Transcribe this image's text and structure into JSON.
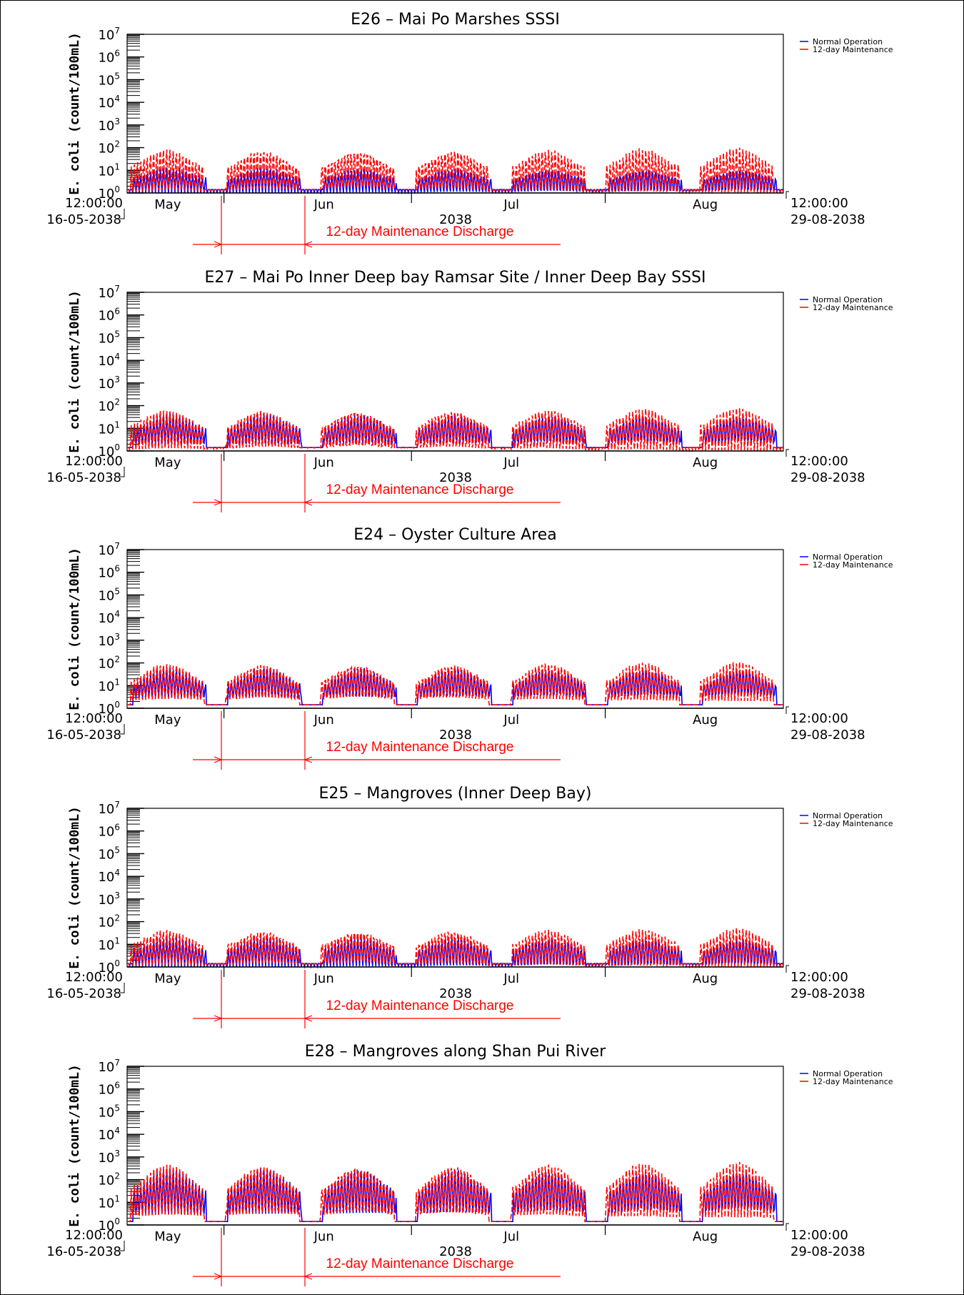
{
  "page": {
    "colors": {
      "normal": "#0000ff",
      "maintenance": "#ff0000",
      "axis": "#000000"
    }
  },
  "shared": {
    "ylabel": "E. coli (count/100mL)",
    "y_tick_labels": [
      "10^0",
      "10^1",
      "10^2",
      "10^3",
      "10^4",
      "10^5",
      "10^6",
      "10^7"
    ],
    "x_month_labels": [
      "May",
      "Jun",
      "Jul",
      "Aug"
    ],
    "x_year_label": "2038",
    "start_time": "12:00:00",
    "start_date": "16-05-2038",
    "end_time": "12:00:00",
    "end_date": "29-08-2038",
    "maintenance_label": "12-day Maintenance Discharge",
    "legend": [
      "Normal Operation",
      "12-day Maintenance"
    ]
  },
  "chart_data": [
    {
      "type": "line",
      "title": "E26 – Mai Po Marshes SSSI",
      "ylabel": "E. coli (count/100mL)",
      "yscale": "log",
      "ylim": [
        1,
        10000000
      ],
      "xlim": [
        "2038-05-16 12:00",
        "2038-08-29 12:00"
      ],
      "maintenance_period": [
        "2038-05-31",
        "2038-06-12"
      ],
      "series": [
        {
          "name": "Normal Operation",
          "color": "#0000ff",
          "typical_peak": 12,
          "typical_trough": 1
        },
        {
          "name": "12-day Maintenance",
          "color": "#ff0000",
          "typical_peak": 100,
          "typical_trough": 1
        }
      ]
    },
    {
      "type": "line",
      "title": "E27 – Mai Po Inner Deep bay Ramsar Site / Inner Deep Bay SSSI",
      "ylabel": "E. coli (count/100mL)",
      "yscale": "log",
      "ylim": [
        1,
        10000000
      ],
      "xlim": [
        "2038-05-16 12:00",
        "2038-08-29 12:00"
      ],
      "maintenance_period": [
        "2038-05-31",
        "2038-06-12"
      ],
      "series": [
        {
          "name": "Normal Operation",
          "color": "#0000ff",
          "typical_peak": 40,
          "typical_trough": 2
        },
        {
          "name": "12-day Maintenance",
          "color": "#ff0000",
          "typical_peak": 80,
          "typical_trough": 1
        }
      ]
    },
    {
      "type": "line",
      "title": "E24 – Oyster Culture Area",
      "ylabel": "E. coli (count/100mL)",
      "yscale": "log",
      "ylim": [
        1,
        10000000
      ],
      "xlim": [
        "2038-05-16 12:00",
        "2038-08-29 12:00"
      ],
      "maintenance_period": [
        "2038-05-31",
        "2038-06-12"
      ],
      "series": [
        {
          "name": "Normal Operation",
          "color": "#0000ff",
          "typical_peak": 60,
          "typical_trough": 3
        },
        {
          "name": "12-day Maintenance",
          "color": "#ff0000",
          "typical_peak": 110,
          "typical_trough": 2
        }
      ]
    },
    {
      "type": "line",
      "title": "E25 – Mangroves (Inner Deep Bay)",
      "ylabel": "E. coli (count/100mL)",
      "yscale": "log",
      "ylim": [
        1,
        10000000
      ],
      "xlim": [
        "2038-05-16 12:00",
        "2038-08-29 12:00"
      ],
      "maintenance_period": [
        "2038-05-31",
        "2038-06-12"
      ],
      "series": [
        {
          "name": "Normal Operation",
          "color": "#0000ff",
          "typical_peak": 20,
          "typical_trough": 1
        },
        {
          "name": "12-day Maintenance",
          "color": "#ff0000",
          "typical_peak": 50,
          "typical_trough": 1
        }
      ]
    },
    {
      "type": "line",
      "title": "E28 – Mangroves along Shan Pui River",
      "ylabel": "E. coli (count/100mL)",
      "yscale": "log",
      "ylim": [
        1,
        10000000
      ],
      "xlim": [
        "2038-05-16 12:00",
        "2038-08-29 12:00"
      ],
      "maintenance_period": [
        "2038-05-31",
        "2038-06-12"
      ],
      "series": [
        {
          "name": "Normal Operation",
          "color": "#0000ff",
          "typical_peak": 300,
          "typical_trough": 3
        },
        {
          "name": "12-day Maintenance",
          "color": "#ff0000",
          "typical_peak": 600,
          "typical_trough": 2
        }
      ]
    }
  ]
}
